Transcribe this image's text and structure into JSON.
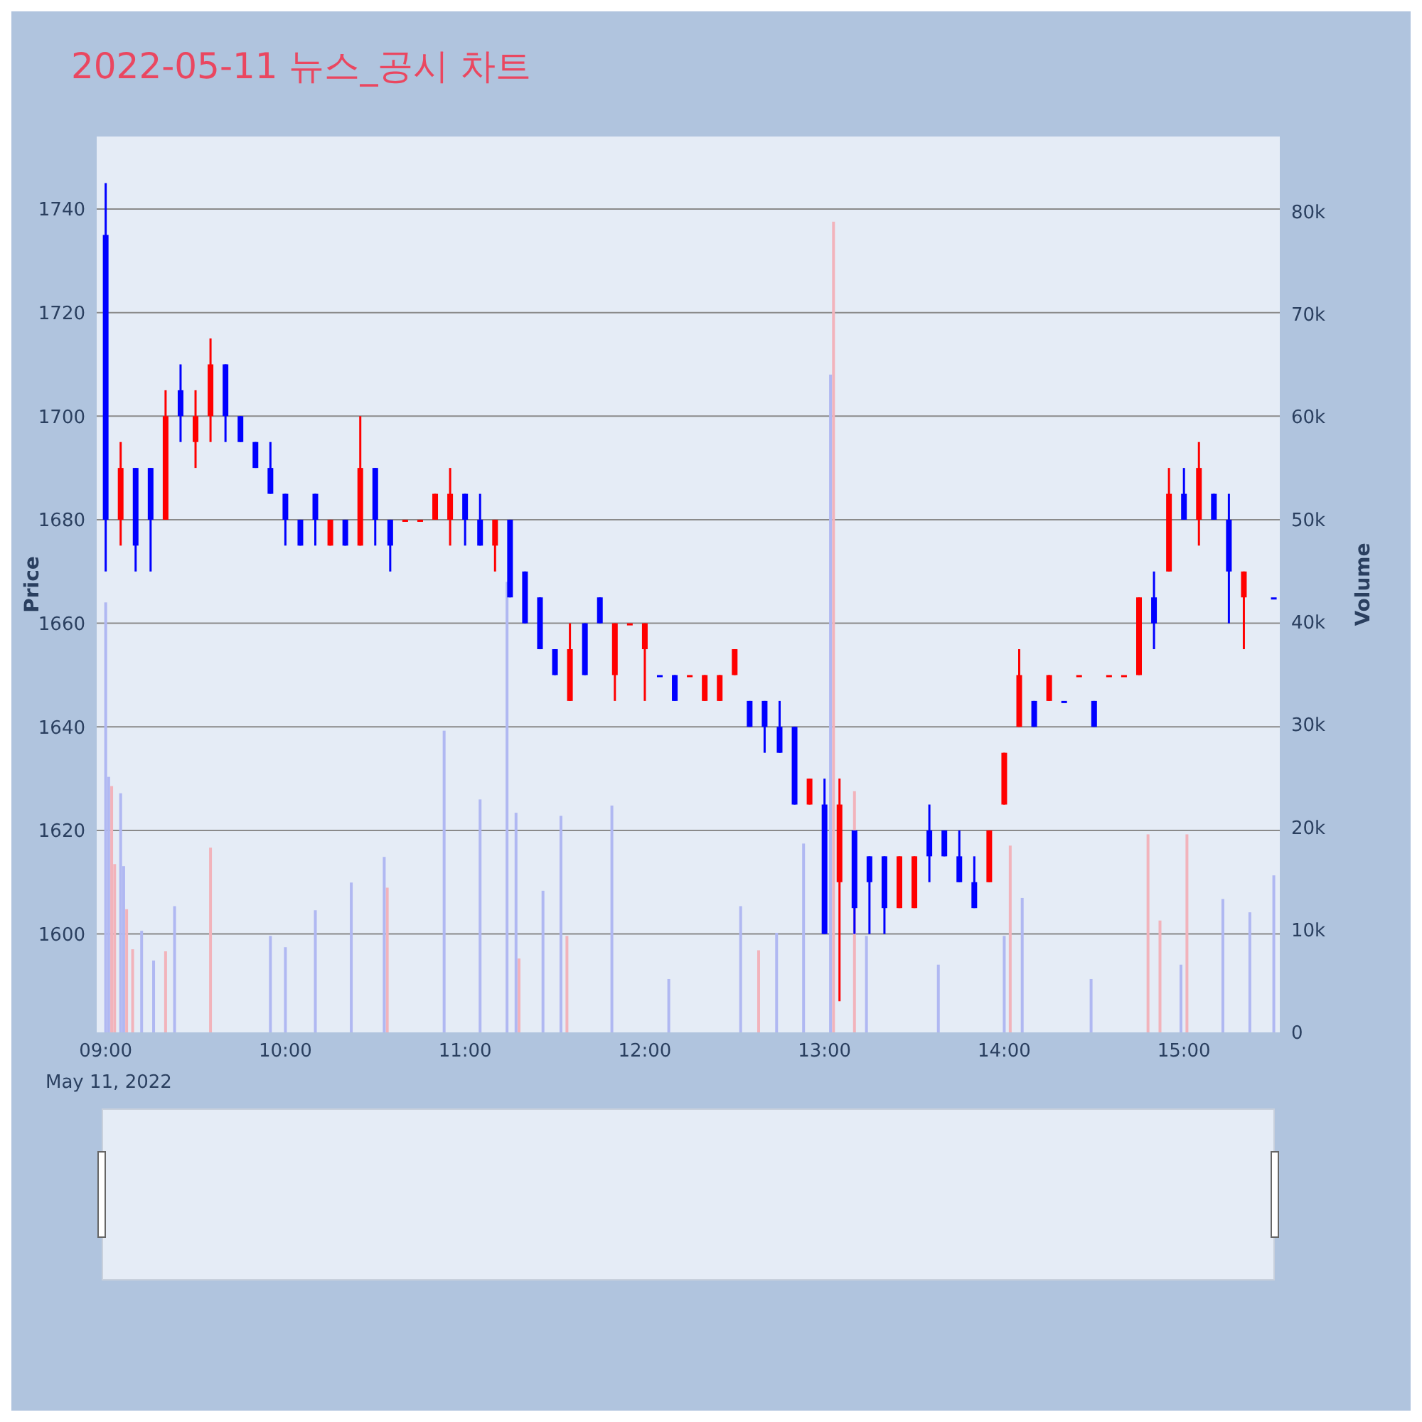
{
  "chart_data": {
    "type": "candlestick",
    "title": "2022-05-11 뉴스_공시 차트",
    "ylabel": "Price",
    "y2label": "Volume",
    "annotations": [
      "May 11, 2022"
    ],
    "xlim": [
      "2022-05-11T08:57",
      "2022-05-11T15:32"
    ],
    "xticks": [
      {
        "value": "2022-05-11T09:00",
        "label": "09:00"
      },
      {
        "value": "2022-05-11T10:00",
        "label": "10:00"
      },
      {
        "value": "2022-05-11T11:00",
        "label": "11:00"
      },
      {
        "value": "2022-05-11T12:00",
        "label": "12:00"
      },
      {
        "value": "2022-05-11T13:00",
        "label": "13:00"
      },
      {
        "value": "2022-05-11T14:00",
        "label": "14:00"
      },
      {
        "value": "2022-05-11T15:00",
        "label": "15:00"
      }
    ],
    "ylim": [
      1581,
      1754
    ],
    "yticks": [
      1600,
      1620,
      1640,
      1660,
      1680,
      1700,
      1720,
      1740
    ],
    "y2lim": [
      0,
      87300
    ],
    "y2ticks": [
      0,
      {
        "value": 10000,
        "label": "10k"
      },
      {
        "value": 20000,
        "label": "20k"
      },
      {
        "value": 30000,
        "label": "30k"
      },
      {
        "value": 40000,
        "label": "40k"
      },
      {
        "value": 50000,
        "label": "50k"
      },
      {
        "value": 60000,
        "label": "60k"
      },
      {
        "value": 70000,
        "label": "70k"
      },
      {
        "value": 80000,
        "label": "80k"
      }
    ],
    "grid": "y",
    "series": [
      {
        "type": "bar",
        "axis": "y2",
        "color": "#f2b3bb",
        "x": [
          "2022-05-11T09:02",
          "2022-05-11T09:03",
          "2022-05-11T09:07",
          "2022-05-11T09:09",
          "2022-05-11T09:20",
          "2022-05-11T09:35",
          "2022-05-11T10:34",
          "2022-05-11T11:18",
          "2022-05-11T11:34",
          "2022-05-11T12:38",
          "2022-05-11T13:03",
          "2022-05-11T13:10",
          "2022-05-11T14:02",
          "2022-05-11T14:48",
          "2022-05-11T14:52",
          "2022-05-11T15:01"
        ],
        "values": [
          24000,
          16400,
          12000,
          8100,
          7900,
          18000,
          14100,
          7200,
          9400,
          8000,
          79000,
          23500,
          18200,
          19300,
          10900,
          19300
        ]
      },
      {
        "type": "bar",
        "axis": "y2",
        "color": "#b0b8f2",
        "x": [
          "2022-05-11T09:00",
          "2022-05-11T09:01",
          "2022-05-11T09:05",
          "2022-05-11T09:06",
          "2022-05-11T09:12",
          "2022-05-11T09:16",
          "2022-05-11T09:23",
          "2022-05-11T09:55",
          "2022-05-11T10:00",
          "2022-05-11T10:10",
          "2022-05-11T10:22",
          "2022-05-11T10:33",
          "2022-05-11T10:53",
          "2022-05-11T11:05",
          "2022-05-11T11:14",
          "2022-05-11T11:17",
          "2022-05-11T11:26",
          "2022-05-11T11:32",
          "2022-05-11T11:49",
          "2022-05-11T12:08",
          "2022-05-11T12:32",
          "2022-05-11T12:44",
          "2022-05-11T12:53",
          "2022-05-11T13:02",
          "2022-05-11T13:14",
          "2022-05-11T13:38",
          "2022-05-11T14:00",
          "2022-05-11T14:06",
          "2022-05-11T14:29",
          "2022-05-11T14:59",
          "2022-05-11T15:13",
          "2022-05-11T15:22",
          "2022-05-11T15:30"
        ],
        "values": [
          41900,
          24900,
          23300,
          16200,
          9900,
          7000,
          12300,
          9400,
          8300,
          11900,
          14600,
          17100,
          29400,
          22700,
          43900,
          21400,
          13800,
          21100,
          22100,
          5200,
          12300,
          9700,
          18400,
          64100,
          9400,
          6600,
          9400,
          13100,
          5200,
          6600,
          13000,
          11700,
          15300
        ]
      },
      {
        "type": "candlestick",
        "color": "#ff0000",
        "x": [
          "2022-05-11T09:05",
          "2022-05-11T09:20",
          "2022-05-11T09:30",
          "2022-05-11T09:35",
          "2022-05-11T10:15",
          "2022-05-11T10:25",
          "2022-05-11T10:40",
          "2022-05-11T10:45",
          "2022-05-11T10:50",
          "2022-05-11T10:55",
          "2022-05-11T11:10",
          "2022-05-11T11:35",
          "2022-05-11T11:50",
          "2022-05-11T11:55",
          "2022-05-11T12:00",
          "2022-05-11T12:15",
          "2022-05-11T12:20",
          "2022-05-11T12:25",
          "2022-05-11T12:30",
          "2022-05-11T12:55",
          "2022-05-11T13:05",
          "2022-05-11T13:25",
          "2022-05-11T13:30",
          "2022-05-11T13:55",
          "2022-05-11T14:00",
          "2022-05-11T14:05",
          "2022-05-11T14:15",
          "2022-05-11T14:25",
          "2022-05-11T14:35",
          "2022-05-11T14:40",
          "2022-05-11T14:45",
          "2022-05-11T14:55",
          "2022-05-11T15:05",
          "2022-05-11T15:20"
        ],
        "ohlc": [
          [
            1680,
            1695,
            1675,
            1690
          ],
          [
            1680,
            1705,
            1680,
            1700
          ],
          [
            1695,
            1705,
            1690,
            1700
          ],
          [
            1700,
            1715,
            1695,
            1710
          ],
          [
            1675,
            1680,
            1675,
            1680
          ],
          [
            1675,
            1700,
            1675,
            1690
          ],
          [
            1680,
            1680,
            1680,
            1680
          ],
          [
            1680,
            1680,
            1680,
            1680
          ],
          [
            1680,
            1685,
            1680,
            1685
          ],
          [
            1680,
            1690,
            1675,
            1685
          ],
          [
            1675,
            1680,
            1670,
            1680
          ],
          [
            1645,
            1660,
            1645,
            1655
          ],
          [
            1650,
            1660,
            1645,
            1660
          ],
          [
            1660,
            1660,
            1660,
            1660
          ],
          [
            1655,
            1660,
            1645,
            1660
          ],
          [
            1650,
            1650,
            1650,
            1650
          ],
          [
            1645,
            1650,
            1645,
            1650
          ],
          [
            1645,
            1650,
            1645,
            1650
          ],
          [
            1650,
            1655,
            1650,
            1655
          ],
          [
            1625,
            1630,
            1625,
            1630
          ],
          [
            1610,
            1630,
            1587,
            1625
          ],
          [
            1605,
            1615,
            1605,
            1615
          ],
          [
            1605,
            1615,
            1605,
            1615
          ],
          [
            1610,
            1620,
            1610,
            1620
          ],
          [
            1625,
            1635,
            1625,
            1635
          ],
          [
            1640,
            1655,
            1640,
            1650
          ],
          [
            1645,
            1650,
            1645,
            1650
          ],
          [
            1650,
            1650,
            1650,
            1650
          ],
          [
            1650,
            1650,
            1650,
            1650
          ],
          [
            1650,
            1650,
            1650,
            1650
          ],
          [
            1650,
            1665,
            1650,
            1665
          ],
          [
            1670,
            1690,
            1670,
            1685
          ],
          [
            1680,
            1695,
            1675,
            1690
          ],
          [
            1665,
            1670,
            1655,
            1670
          ]
        ]
      },
      {
        "type": "candlestick",
        "color": "#0000ff",
        "x": [
          "2022-05-11T09:00",
          "2022-05-11T09:10",
          "2022-05-11T09:15",
          "2022-05-11T09:25",
          "2022-05-11T09:40",
          "2022-05-11T09:45",
          "2022-05-11T09:50",
          "2022-05-11T09:55",
          "2022-05-11T10:00",
          "2022-05-11T10:05",
          "2022-05-11T10:10",
          "2022-05-11T10:20",
          "2022-05-11T10:30",
          "2022-05-11T10:35",
          "2022-05-11T11:00",
          "2022-05-11T11:05",
          "2022-05-11T11:15",
          "2022-05-11T11:20",
          "2022-05-11T11:25",
          "2022-05-11T11:30",
          "2022-05-11T11:40",
          "2022-05-11T11:45",
          "2022-05-11T12:05",
          "2022-05-11T12:10",
          "2022-05-11T12:35",
          "2022-05-11T12:40",
          "2022-05-11T12:45",
          "2022-05-11T12:50",
          "2022-05-11T13:00",
          "2022-05-11T13:10",
          "2022-05-11T13:15",
          "2022-05-11T13:20",
          "2022-05-11T13:35",
          "2022-05-11T13:40",
          "2022-05-11T13:45",
          "2022-05-11T13:50",
          "2022-05-11T14:10",
          "2022-05-11T14:20",
          "2022-05-11T14:30",
          "2022-05-11T14:50",
          "2022-05-11T15:00",
          "2022-05-11T15:10",
          "2022-05-11T15:15",
          "2022-05-11T15:30"
        ],
        "ohlc": [
          [
            1735,
            1745,
            1670,
            1680
          ],
          [
            1690,
            1690,
            1670,
            1675
          ],
          [
            1690,
            1690,
            1670,
            1680
          ],
          [
            1705,
            1710,
            1695,
            1700
          ],
          [
            1710,
            1710,
            1695,
            1700
          ],
          [
            1700,
            1700,
            1695,
            1695
          ],
          [
            1695,
            1695,
            1690,
            1690
          ],
          [
            1690,
            1695,
            1685,
            1685
          ],
          [
            1685,
            1685,
            1675,
            1680
          ],
          [
            1680,
            1680,
            1675,
            1675
          ],
          [
            1685,
            1685,
            1675,
            1680
          ],
          [
            1680,
            1680,
            1675,
            1675
          ],
          [
            1690,
            1690,
            1675,
            1680
          ],
          [
            1680,
            1680,
            1670,
            1675
          ],
          [
            1685,
            1685,
            1675,
            1680
          ],
          [
            1680,
            1685,
            1675,
            1675
          ],
          [
            1680,
            1680,
            1665,
            1665
          ],
          [
            1670,
            1670,
            1660,
            1660
          ],
          [
            1665,
            1665,
            1655,
            1655
          ],
          [
            1655,
            1655,
            1650,
            1650
          ],
          [
            1660,
            1660,
            1650,
            1650
          ],
          [
            1665,
            1665,
            1660,
            1660
          ],
          [
            1650,
            1650,
            1650,
            1650
          ],
          [
            1650,
            1650,
            1645,
            1645
          ],
          [
            1645,
            1645,
            1640,
            1640
          ],
          [
            1645,
            1645,
            1635,
            1640
          ],
          [
            1640,
            1645,
            1635,
            1635
          ],
          [
            1640,
            1640,
            1625,
            1625
          ],
          [
            1625,
            1630,
            1600,
            1600
          ],
          [
            1620,
            1620,
            1600,
            1605
          ],
          [
            1615,
            1615,
            1600,
            1610
          ],
          [
            1615,
            1615,
            1600,
            1605
          ],
          [
            1620,
            1625,
            1610,
            1615
          ],
          [
            1620,
            1620,
            1615,
            1615
          ],
          [
            1615,
            1620,
            1610,
            1610
          ],
          [
            1610,
            1615,
            1605,
            1605
          ],
          [
            1645,
            1645,
            1640,
            1640
          ],
          [
            1645,
            1645,
            1645,
            1645
          ],
          [
            1645,
            1645,
            1640,
            1640
          ],
          [
            1665,
            1670,
            1655,
            1660
          ],
          [
            1685,
            1690,
            1680,
            1680
          ],
          [
            1685,
            1685,
            1680,
            1680
          ],
          [
            1680,
            1685,
            1660,
            1670
          ],
          [
            1665,
            1665,
            1665,
            1665
          ]
        ]
      }
    ]
  }
}
